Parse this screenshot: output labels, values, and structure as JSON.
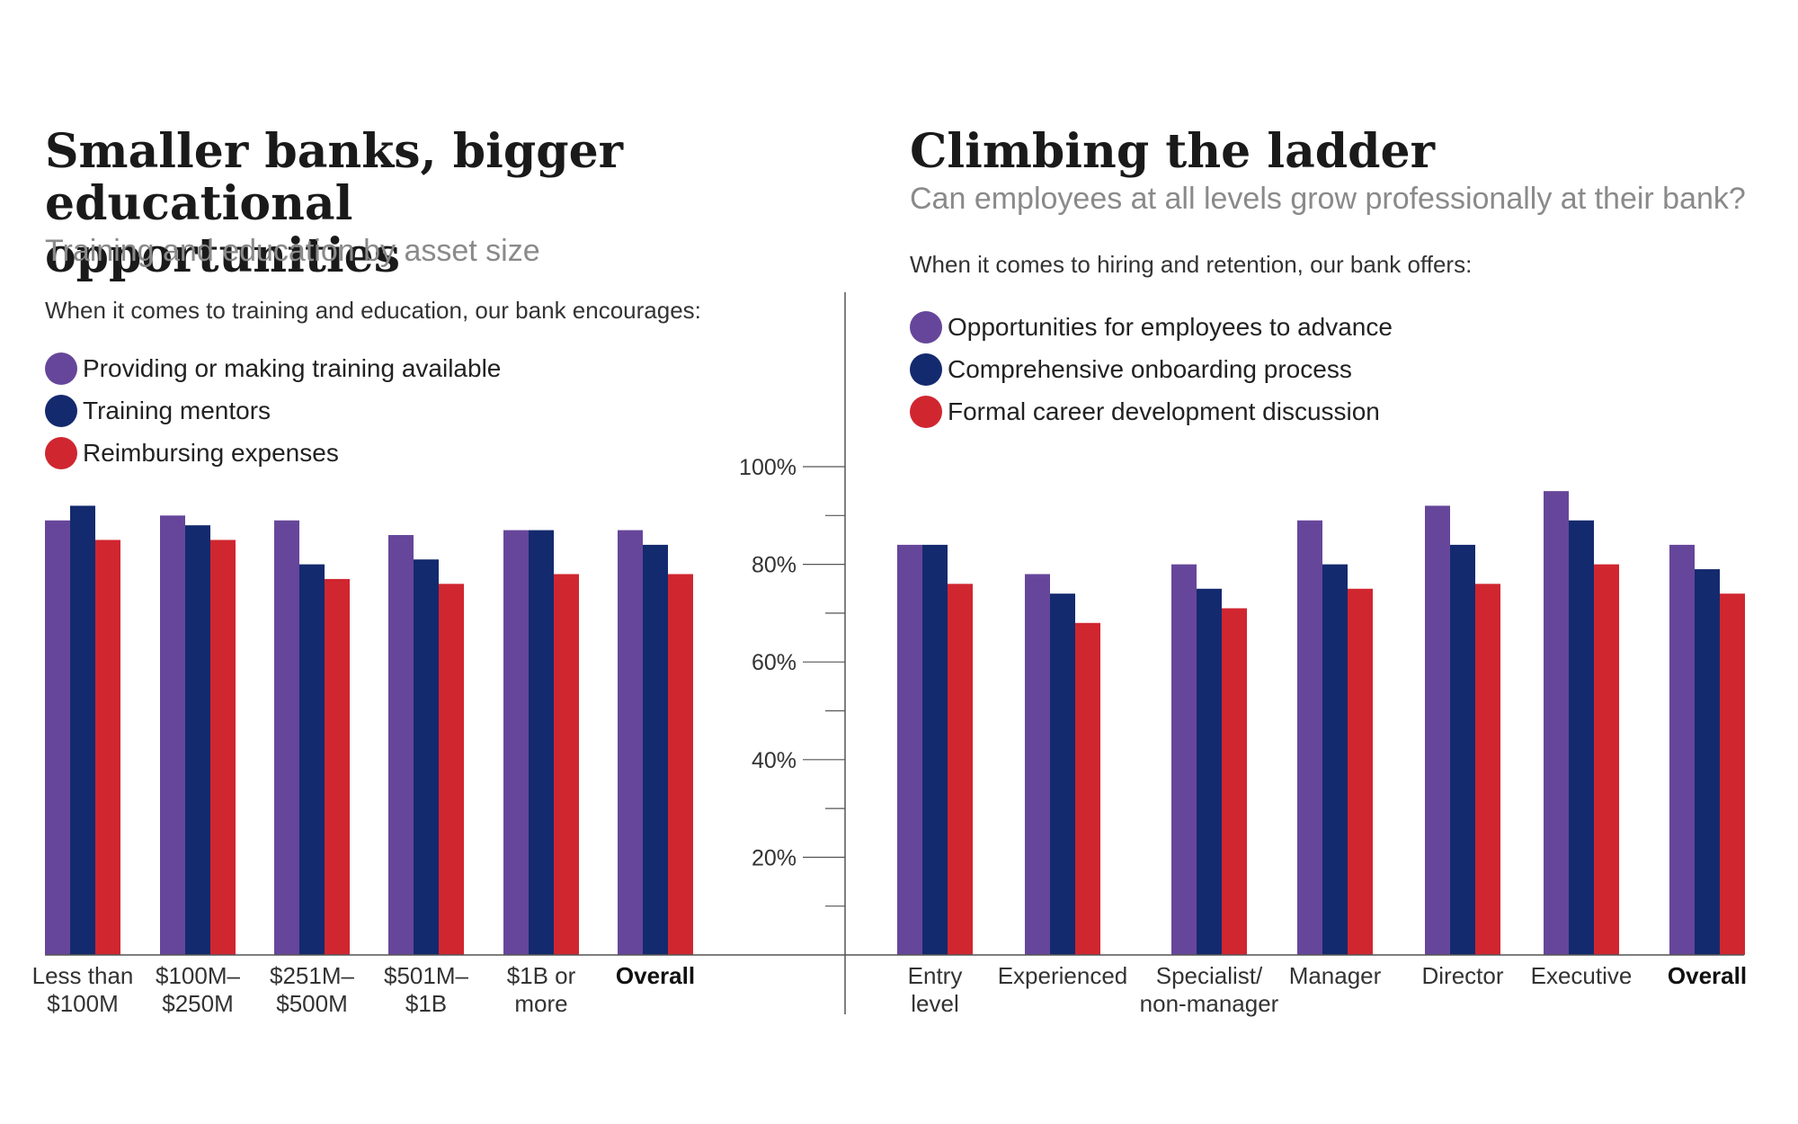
{
  "colors": {
    "purple": "#66469a",
    "navy": "#142a6e",
    "red": "#d02630",
    "axis": "#555555"
  },
  "chart_data": [
    {
      "type": "bar",
      "title": "Smaller banks, bigger educational opportunities",
      "subtitle": "Training and education by asset size",
      "intro": "When it comes to training and education, our bank encourages:",
      "ylim": [
        0,
        100
      ],
      "ylabel": "",
      "xlabel": "",
      "categories": [
        {
          "line1": "Less than",
          "line2": "$100M",
          "bold": false
        },
        {
          "line1": "$100M–",
          "line2": "$250M",
          "bold": false
        },
        {
          "line1": "$251M–",
          "line2": "$500M",
          "bold": false
        },
        {
          "line1": "$501M–",
          "line2": "$1B",
          "bold": false
        },
        {
          "line1": "$1B or",
          "line2": "more",
          "bold": false
        },
        {
          "line1": "Overall",
          "line2": "",
          "bold": true
        }
      ],
      "series": [
        {
          "name": "Providing or making training available",
          "color": "#66469a",
          "values": [
            89,
            90,
            89,
            86,
            87,
            87
          ]
        },
        {
          "name": "Training mentors",
          "color": "#142a6e",
          "values": [
            92,
            88,
            80,
            81,
            87,
            84
          ]
        },
        {
          "name": "Reimbursing expenses",
          "color": "#d02630",
          "values": [
            85,
            85,
            77,
            76,
            78,
            78
          ]
        }
      ]
    },
    {
      "type": "bar",
      "title": "Climbing the ladder",
      "subtitle": "Can employees at all levels grow professionally at their bank?",
      "intro": "When it comes to hiring and retention, our bank offers:",
      "ylim": [
        0,
        100
      ],
      "ylabel": "",
      "xlabel": "",
      "yticks": [
        {
          "value": 100,
          "label": "100%"
        },
        {
          "value": 80,
          "label": "80%"
        },
        {
          "value": 60,
          "label": "60%"
        },
        {
          "value": 40,
          "label": "40%"
        },
        {
          "value": 20,
          "label": "20%"
        }
      ],
      "categories": [
        {
          "line1": "Entry",
          "line2": "level",
          "bold": false
        },
        {
          "line1": "Experienced",
          "line2": "",
          "bold": false
        },
        {
          "line1": "Specialist/",
          "line2": "non-manager",
          "bold": false
        },
        {
          "line1": "Manager",
          "line2": "",
          "bold": false
        },
        {
          "line1": "Director",
          "line2": "",
          "bold": false
        },
        {
          "line1": "Executive",
          "line2": "",
          "bold": false
        },
        {
          "line1": "Overall",
          "line2": "",
          "bold": true
        }
      ],
      "series": [
        {
          "name": "Opportunities for employees to advance",
          "color": "#66469a",
          "values": [
            84,
            78,
            80,
            89,
            92,
            95,
            84
          ]
        },
        {
          "name": "Comprehensive onboarding process",
          "color": "#142a6e",
          "values": [
            84,
            74,
            75,
            80,
            84,
            89,
            79
          ]
        },
        {
          "name": "Formal career development discussion",
          "color": "#d02630",
          "values": [
            76,
            68,
            71,
            75,
            76,
            80,
            74
          ]
        }
      ]
    }
  ]
}
